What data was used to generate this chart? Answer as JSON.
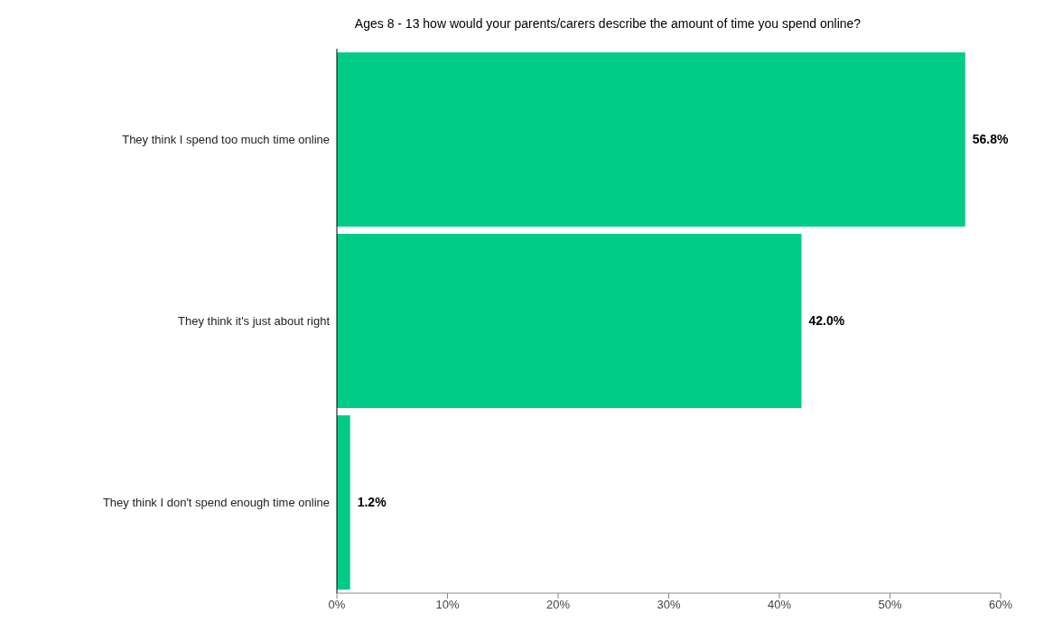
{
  "chart_data": {
    "type": "bar",
    "orientation": "horizontal",
    "title": "Ages 8 - 13 how would your parents/carers describe the amount of time you spend online?",
    "categories": [
      "They think I spend too much time online",
      "They think it's just about right",
      "They think I don't spend enough time online"
    ],
    "values": [
      56.8,
      42.0,
      1.2
    ],
    "color": "#00cc88",
    "value_labels": [
      "56.8%",
      "42.0%",
      "1.2%"
    ],
    "xlim": [
      0,
      60
    ],
    "xticks": [
      {
        "value": 0,
        "label": "0%"
      },
      {
        "value": 10,
        "label": "10%"
      },
      {
        "value": 20,
        "label": "20%"
      },
      {
        "value": 30,
        "label": "30%"
      },
      {
        "value": 40,
        "label": "40%"
      },
      {
        "value": 50,
        "label": "50%"
      },
      {
        "value": 60,
        "label": "60%"
      }
    ],
    "legend": false
  }
}
